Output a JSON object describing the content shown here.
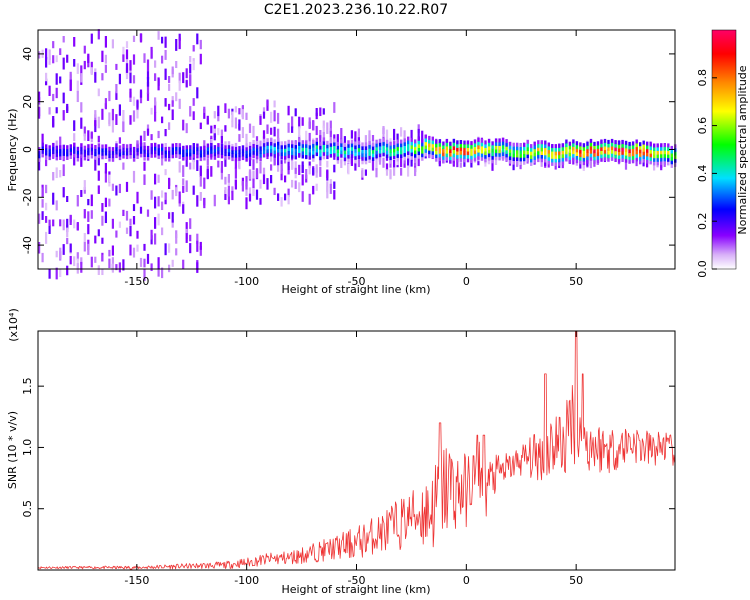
{
  "title": "C2E1.2023.236.10.22.R07",
  "chart_data": [
    {
      "type": "heatmap",
      "title": "C2E1.2023.236.10.22.R07",
      "xlabel": "Height of straight line (km)",
      "ylabel": "Frequency (Hz)",
      "xlim": [
        -195,
        95
      ],
      "ylim": [
        -50,
        50
      ],
      "xticks": [
        -150,
        -100,
        -50,
        0,
        50
      ],
      "yticks": [
        -40,
        -20,
        0,
        20,
        40
      ],
      "colorbar": {
        "label": "Normalized spectral amplitude",
        "range": [
          0.0,
          1.0
        ],
        "ticks": [
          0.0,
          0.2,
          0.4,
          0.6,
          0.8
        ],
        "colormap": [
          "#ffffff",
          "#d8b0f8",
          "#8800ff",
          "#0000ff",
          "#00e0ff",
          "#00ff00",
          "#ffff00",
          "#ff8800",
          "#ff0000",
          "#ff0066"
        ]
      },
      "ridge": {
        "description_values": "center frequency (Hz) of the strongest band vs height (km)",
        "x": [
          -195,
          -150,
          -100,
          -75,
          -50,
          -30,
          -20,
          -10,
          0,
          10,
          25,
          40,
          45,
          50,
          60,
          80,
          95
        ],
        "center": [
          0,
          0,
          0,
          1,
          0,
          1,
          2,
          0,
          0,
          1,
          0,
          -1,
          0,
          0,
          0,
          0,
          -2
        ],
        "peak_amplitude": [
          0.25,
          0.25,
          0.3,
          0.45,
          0.45,
          0.5,
          0.65,
          0.9,
          0.9,
          0.65,
          0.6,
          0.8,
          0.85,
          0.85,
          0.95,
          0.95,
          0.6
        ]
      },
      "grid": false
    },
    {
      "type": "line",
      "xlabel": "Height of straight line (km)",
      "ylabel": "SNR (10 * v/v)",
      "y_multiplier_label": "(x10⁴)",
      "xlim": [
        -195,
        95
      ],
      "ylim": [
        0.0,
        1.95
      ],
      "xticks": [
        -150,
        -100,
        -50,
        0,
        50
      ],
      "yticks": [
        0.5,
        1.0,
        1.5
      ],
      "color": "#ee3333",
      "series": [
        {
          "x": [
            -195,
            -170,
            -150,
            -130,
            -110,
            -100,
            -90,
            -80,
            -70,
            -60,
            -50,
            -40,
            -35,
            -30,
            -25,
            -20,
            -15,
            -12,
            -8,
            -5,
            0,
            3,
            6,
            8,
            10,
            15,
            20,
            25,
            30,
            35,
            40,
            45,
            48,
            50,
            55,
            60,
            65,
            70,
            75,
            80,
            85,
            90,
            95
          ],
          "values": [
            0.02,
            0.02,
            0.02,
            0.03,
            0.04,
            0.06,
            0.09,
            0.1,
            0.14,
            0.18,
            0.22,
            0.3,
            0.33,
            0.38,
            0.45,
            0.46,
            0.5,
            0.6,
            0.7,
            0.65,
            0.65,
            0.75,
            0.85,
            0.55,
            0.72,
            0.8,
            0.84,
            0.9,
            0.92,
            0.95,
            1.05,
            1.02,
            1.3,
            1.05,
            1.03,
            1.0,
            0.98,
            1.0,
            1.05,
            1.0,
            0.98,
            1.02,
            0.95
          ],
          "spread": [
            0.01,
            0.01,
            0.015,
            0.02,
            0.03,
            0.04,
            0.05,
            0.06,
            0.08,
            0.1,
            0.14,
            0.16,
            0.2,
            0.22,
            0.2,
            0.3,
            0.35,
            0.4,
            0.42,
            0.35,
            0.3,
            0.28,
            0.25,
            0.25,
            0.2,
            0.15,
            0.12,
            0.14,
            0.18,
            0.25,
            0.3,
            0.3,
            0.35,
            0.3,
            0.25,
            0.22,
            0.2,
            0.18,
            0.17,
            0.16,
            0.15,
            0.14,
            0.12
          ]
        }
      ],
      "annotations": [
        {
          "x": 5,
          "peak": 1.1
        },
        {
          "x": 8,
          "peak": 1.1
        },
        {
          "x": -12,
          "peak": 1.2
        },
        {
          "x": 36,
          "peak": 1.6
        },
        {
          "x": 50,
          "peak": 1.95
        },
        {
          "x": 53,
          "peak": 1.6
        }
      ],
      "grid": false
    }
  ]
}
